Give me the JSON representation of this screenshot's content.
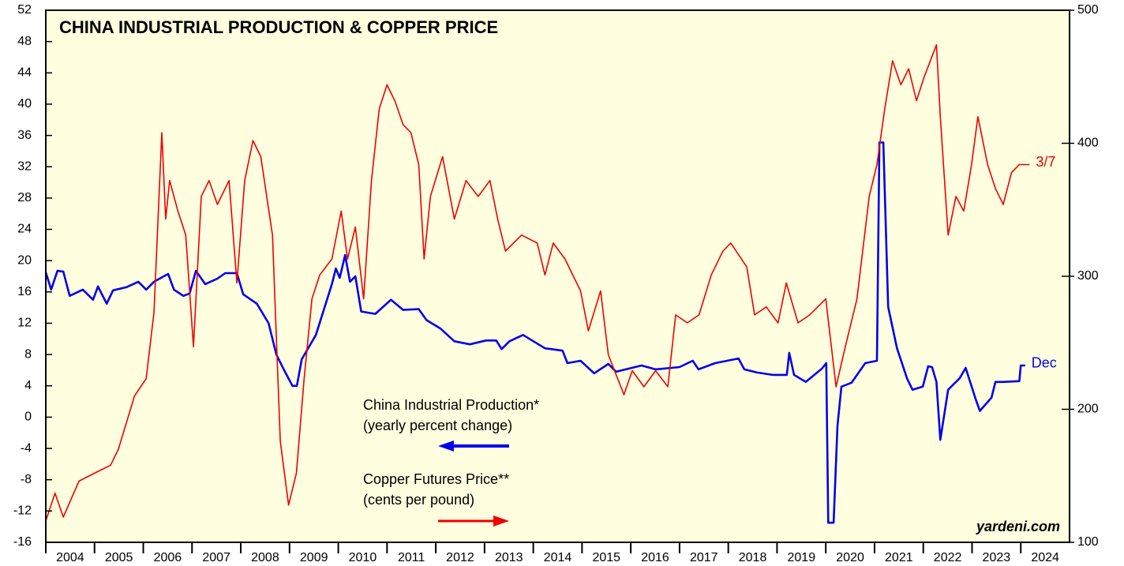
{
  "chart_data": {
    "type": "line",
    "title": "CHINA INDUSTRIAL PRODUCTION & COPPER PRICE",
    "annotations": [
      "China Industrial Production*",
      "(yearly percent change)",
      "Copper Futures Price**",
      "(cents per pound)",
      "yardeni.com"
    ],
    "xlim": [
      2004,
      2025
    ],
    "xticks": [
      2004,
      2005,
      2006,
      2007,
      2008,
      2009,
      2010,
      2011,
      2012,
      2013,
      2014,
      2015,
      2016,
      2017,
      2018,
      2019,
      2020,
      2021,
      2022,
      2023,
      2024
    ],
    "ylim": [
      -16,
      52
    ],
    "yticks": [
      -16,
      -12,
      -8,
      -4,
      0,
      4,
      8,
      12,
      16,
      20,
      24,
      28,
      32,
      36,
      40,
      44,
      48,
      52
    ],
    "y2lim": [
      100,
      500
    ],
    "y2ticks": [
      100,
      200,
      300,
      400,
      500
    ],
    "series": [
      {
        "name": "China Industrial Production*",
        "color": "#0000ee",
        "axis": "y",
        "end_label": "Dec",
        "x": [
          2004.0,
          2004.11,
          2004.24,
          2004.36,
          2004.49,
          2004.76,
          2004.97,
          2005.07,
          2005.25,
          2005.38,
          2005.65,
          2005.9,
          2006.06,
          2006.22,
          2006.51,
          2006.63,
          2006.82,
          2006.95,
          2007.08,
          2007.27,
          2007.52,
          2007.68,
          2007.92,
          2008.05,
          2008.33,
          2008.57,
          2008.73,
          2008.89,
          2009.06,
          2009.15,
          2009.25,
          2009.54,
          2009.87,
          2009.95,
          2010.03,
          2010.14,
          2010.24,
          2010.35,
          2010.47,
          2010.76,
          2011.08,
          2011.33,
          2011.65,
          2011.81,
          2012.1,
          2012.38,
          2012.7,
          2013.03,
          2013.24,
          2013.35,
          2013.51,
          2013.79,
          2014.24,
          2014.6,
          2014.7,
          2014.97,
          2015.25,
          2015.54,
          2015.7,
          2016.22,
          2016.51,
          2017.0,
          2017.27,
          2017.39,
          2017.73,
          2018.21,
          2018.33,
          2018.59,
          2018.91,
          2019.2,
          2019.25,
          2019.35,
          2019.59,
          2019.92,
          2020.01,
          2020.05,
          2020.16,
          2020.24,
          2020.32,
          2020.53,
          2020.81,
          2021.05,
          2021.1,
          2021.18,
          2021.28,
          2021.46,
          2021.67,
          2021.78,
          2021.99,
          2022.1,
          2022.18,
          2022.27,
          2022.35,
          2022.51,
          2022.75,
          2022.87,
          2023.08,
          2023.16,
          2023.4,
          2023.48,
          2023.64,
          2023.97,
          2024.0,
          2024.09
        ],
        "values": [
          18.5,
          16.3,
          18.7,
          18.6,
          15.5,
          16.3,
          15.0,
          16.7,
          14.5,
          16.2,
          16.6,
          17.3,
          16.3,
          17.3,
          18.3,
          16.3,
          15.5,
          15.8,
          18.7,
          17.0,
          17.7,
          18.4,
          18.4,
          15.7,
          14.5,
          12.0,
          8.0,
          6.0,
          4.0,
          4.0,
          7.4,
          10.5,
          17.0,
          19.0,
          17.8,
          20.7,
          17.3,
          18.0,
          13.5,
          13.2,
          15.0,
          13.7,
          13.8,
          12.4,
          11.3,
          9.7,
          9.3,
          9.8,
          9.8,
          8.7,
          9.7,
          10.5,
          8.8,
          8.5,
          6.9,
          7.2,
          5.6,
          6.8,
          5.8,
          6.6,
          6.1,
          6.4,
          7.2,
          6.1,
          6.9,
          7.5,
          6.1,
          5.7,
          5.4,
          5.4,
          8.2,
          5.4,
          4.5,
          6.2,
          6.9,
          -13.5,
          -13.5,
          -1.1,
          3.9,
          4.4,
          6.9,
          7.2,
          35.1,
          35.1,
          14.1,
          8.8,
          4.9,
          3.5,
          3.9,
          6.5,
          6.4,
          4.5,
          -2.9,
          3.5,
          5.0,
          6.3,
          2.2,
          0.8,
          2.5,
          4.5,
          4.5,
          4.6,
          6.6,
          6.6
        ]
      },
      {
        "name": "Copper Futures Price**",
        "color": "#ee0000",
        "axis": "y2",
        "end_label": "3/7",
        "x": [
          2004.0,
          2004.19,
          2004.36,
          2004.68,
          2005.0,
          2005.33,
          2005.49,
          2005.82,
          2006.06,
          2006.22,
          2006.38,
          2006.46,
          2006.54,
          2006.71,
          2006.87,
          2007.03,
          2007.19,
          2007.35,
          2007.52,
          2007.76,
          2007.92,
          2008.08,
          2008.25,
          2008.41,
          2008.65,
          2008.81,
          2008.98,
          2009.14,
          2009.3,
          2009.46,
          2009.62,
          2009.87,
          2010.06,
          2010.19,
          2010.35,
          2010.52,
          2010.68,
          2010.84,
          2011.0,
          2011.16,
          2011.33,
          2011.49,
          2011.65,
          2011.76,
          2011.89,
          2012.14,
          2012.38,
          2012.62,
          2012.87,
          2013.11,
          2013.27,
          2013.43,
          2013.76,
          2014.08,
          2014.24,
          2014.41,
          2014.65,
          2014.97,
          2015.13,
          2015.38,
          2015.54,
          2015.86,
          2016.03,
          2016.27,
          2016.51,
          2016.76,
          2016.92,
          2017.16,
          2017.4,
          2017.65,
          2017.89,
          2018.05,
          2018.38,
          2018.54,
          2018.78,
          2019.02,
          2019.19,
          2019.43,
          2019.67,
          2020.0,
          2020.21,
          2020.4,
          2020.64,
          2020.89,
          2021.05,
          2021.21,
          2021.37,
          2021.54,
          2021.7,
          2021.86,
          2022.02,
          2022.27,
          2022.35,
          2022.51,
          2022.67,
          2022.83,
          2022.99,
          2023.12,
          2023.32,
          2023.48,
          2023.64,
          2023.81,
          2023.97,
          2024.18
        ],
        "values": [
          116,
          137,
          119,
          146,
          152,
          158,
          170,
          210,
          223,
          273,
          408,
          343,
          372,
          349,
          331,
          247,
          360,
          372,
          354,
          372,
          295,
          372,
          402,
          390,
          331,
          176,
          128,
          152,
          223,
          283,
          301,
          313,
          349,
          313,
          337,
          283,
          372,
          426,
          444,
          432,
          414,
          408,
          384,
          313,
          360,
          390,
          343,
          372,
          360,
          372,
          343,
          319,
          331,
          325,
          301,
          325,
          313,
          289,
          259,
          289,
          241,
          211,
          229,
          217,
          229,
          217,
          271,
          265,
          271,
          301,
          319,
          325,
          307,
          271,
          277,
          265,
          295,
          265,
          271,
          283,
          217,
          247,
          283,
          360,
          384,
          426,
          462,
          444,
          456,
          432,
          450,
          474,
          420,
          331,
          360,
          349,
          384,
          420,
          384,
          366,
          354,
          378,
          384,
          384
        ]
      }
    ]
  }
}
